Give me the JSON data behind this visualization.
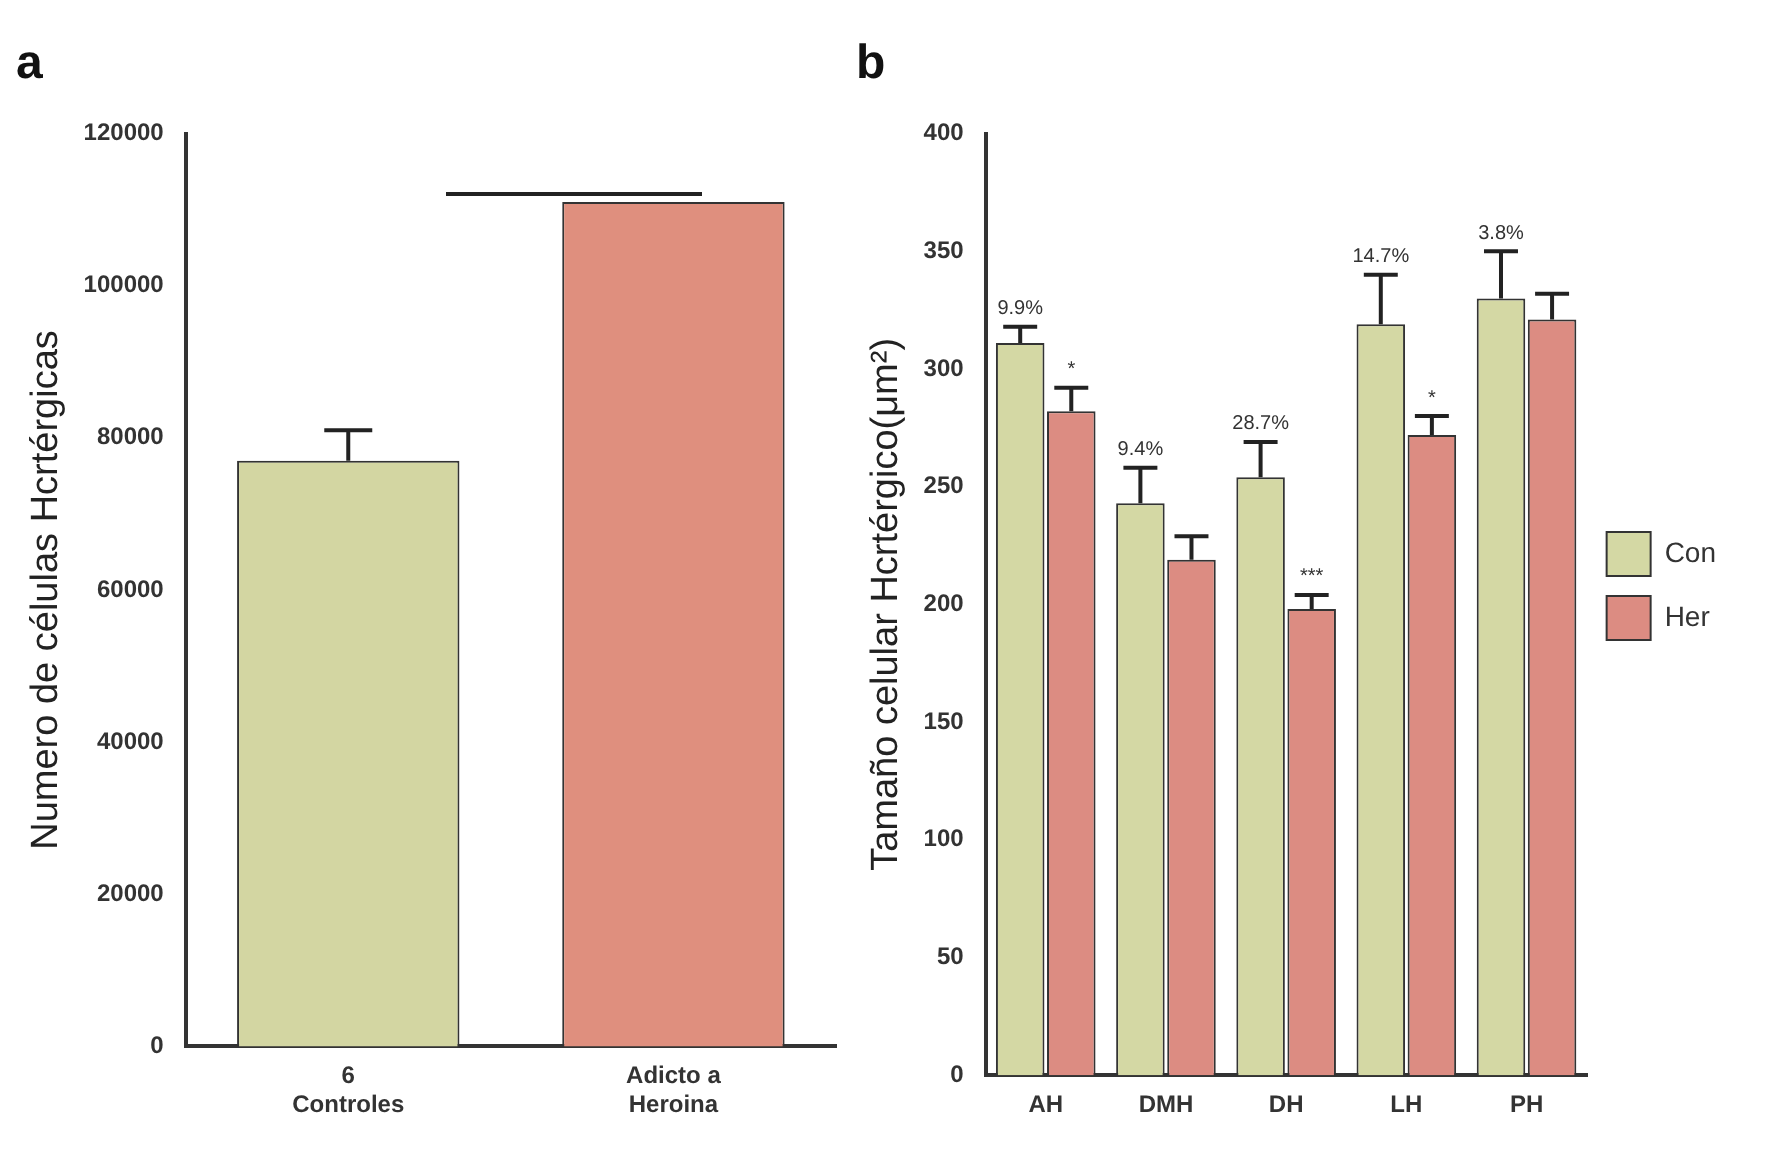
{
  "chart_data": [
    {
      "type": "bar",
      "title": "a",
      "ylabel": "Numero de células Hcrtérgicas",
      "categories": [
        "6 Controles",
        "Adicto a Heroina"
      ],
      "values": [
        77000,
        111000
      ],
      "colors": [
        "#d3d6a2",
        "#df8f7e"
      ],
      "errors": [
        [
          77000,
          81000
        ],
        null
      ],
      "ylim": [
        0,
        120000
      ],
      "yticks": [
        0,
        20000,
        40000,
        60000,
        80000,
        100000,
        120000
      ],
      "grid": false,
      "legend": false
    },
    {
      "type": "bar",
      "title": "b",
      "ylabel": "Tamaño celular Hcrtérgico(μm²)",
      "categories": [
        "AH",
        "DMH",
        "DH",
        "LH",
        "PH"
      ],
      "series": [
        {
          "name": "Con",
          "color": "#d4d8a4",
          "values": [
            311,
            243,
            254,
            319,
            330
          ],
          "errors": [
            [
              311,
              318
            ],
            [
              243,
              258
            ],
            [
              254,
              269
            ],
            [
              319,
              340
            ],
            [
              330,
              350
            ]
          ]
        },
        {
          "name": "Her",
          "color": "#dc8c82",
          "values": [
            282,
            219,
            198,
            272,
            321
          ],
          "errors": [
            [
              282,
              292
            ],
            [
              219,
              229
            ],
            [
              198,
              204
            ],
            [
              272,
              280
            ],
            [
              321,
              332
            ]
          ]
        }
      ],
      "annotations": [
        {
          "text": "9.9%",
          "x": "AH",
          "y": 318
        },
        {
          "text": "*",
          "x": "AH",
          "y": 292
        },
        {
          "text": "9.4%",
          "x": "DMH",
          "y": 258
        },
        {
          "text": "28.7%",
          "x": "DH",
          "y": 269
        },
        {
          "text": "***",
          "x": "DH",
          "y": 204
        },
        {
          "text": "14.7%",
          "x": "LH",
          "y": 340
        },
        {
          "text": "*",
          "x": "LH",
          "y": 280
        },
        {
          "text": "3.8%",
          "x": "PH",
          "y": 350
        }
      ],
      "ylim": [
        0,
        400
      ],
      "yticks": [
        0,
        50,
        100,
        150,
        200,
        250,
        300,
        350,
        400
      ],
      "grid": false,
      "legend": "right"
    }
  ]
}
